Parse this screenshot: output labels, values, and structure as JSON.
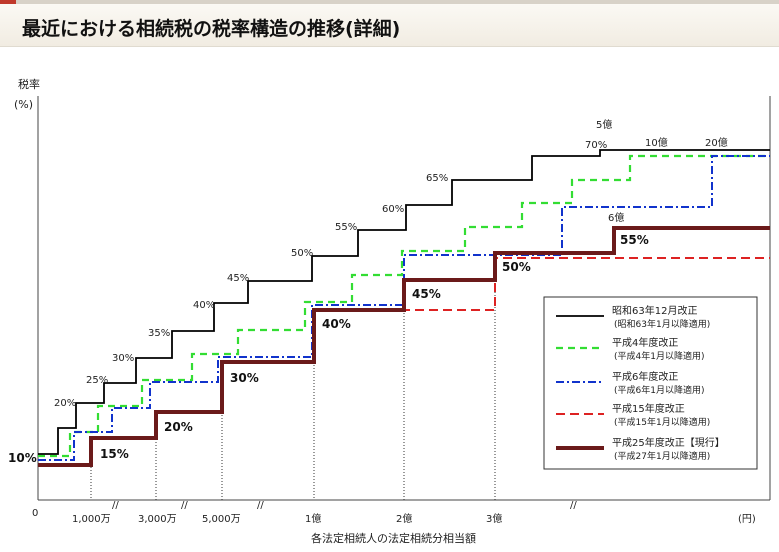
{
  "page": {
    "title": "最近における相続税の税率構造の推移(詳細)"
  },
  "chart_data": {
    "type": "line",
    "title": "最近における相続税の税率構造の推移(詳細)",
    "ylabel": "税率",
    "yunit": "(%)",
    "xlabel": "各法定相続人の法定相続分相当額",
    "xunit": "(円)",
    "x_origin_label": "0",
    "x_tick_labels": [
      "1,000万",
      "3,000万",
      "5,000万",
      "1億",
      "2億",
      "3億"
    ],
    "legend_position": "bottom-right",
    "series": [
      {
        "name": "昭和63年12月改正",
        "subname": "(昭和63年1月以降適用)",
        "color": "#000000",
        "dash": "solid",
        "steps": [
          {
            "x": 0,
            "rate": 10
          },
          {
            "x": 0.5,
            "rate": 15
          },
          {
            "x": 1,
            "rate": 20
          },
          {
            "x": 2,
            "rate": 25
          },
          {
            "x": 3,
            "rate": 30
          },
          {
            "x": 4,
            "rate": 35
          },
          {
            "x": 5,
            "rate": 40
          },
          {
            "x": 6,
            "rate": 45
          },
          {
            "x": 8,
            "rate": 50
          },
          {
            "x": 9,
            "rate": 55
          },
          {
            "x": 10,
            "rate": 60
          },
          {
            "x": 11,
            "rate": 65
          },
          {
            "x": 13,
            "rate": 70
          }
        ],
        "labels": [
          "20%",
          "25%",
          "30%",
          "35%",
          "40%",
          "45%",
          "50%",
          "55%",
          "60%",
          "65%",
          "70%"
        ],
        "top_label": "5億"
      },
      {
        "name": "平成4年度改正",
        "subname": "(平成4年1月以降適用)",
        "color": "#33dd33",
        "dash": "dashed",
        "steps": [
          {
            "x": 0,
            "rate": 10
          },
          {
            "x": 0.7,
            "rate": 15
          },
          {
            "x": 1.3,
            "rate": 20
          },
          {
            "x": 2.3,
            "rate": 25
          },
          {
            "x": 3.3,
            "rate": 30
          },
          {
            "x": 4.3,
            "rate": 35
          },
          {
            "x": 6,
            "rate": 40
          },
          {
            "x": 7.3,
            "rate": 45
          },
          {
            "x": 8.3,
            "rate": 50
          },
          {
            "x": 9.3,
            "rate": 55
          },
          {
            "x": 10.3,
            "rate": 60
          },
          {
            "x": 11.3,
            "rate": 65
          },
          {
            "x": 12.3,
            "rate": 70
          }
        ],
        "top_label": "10億"
      },
      {
        "name": "平成6年度改正",
        "subname": "(平成6年1月以降適用)",
        "color": "#1133cc",
        "dash": "dashdot",
        "steps": [
          {
            "x": 0,
            "rate": 10
          },
          {
            "x": 0.8,
            "rate": 15
          },
          {
            "x": 1.6,
            "rate": 20
          },
          {
            "x": 2.6,
            "rate": 25
          },
          {
            "x": 3.9,
            "rate": 30
          },
          {
            "x": 6,
            "rate": 40
          },
          {
            "x": 8,
            "rate": 50
          },
          {
            "x": 10.3,
            "rate": 60
          },
          {
            "x": 13,
            "rate": 70
          }
        ],
        "top_label": "20億"
      },
      {
        "name": "平成15年度改正",
        "subname": "(平成15年1月以降適用)",
        "color": "#dd2222",
        "dash": "dashed",
        "steps": [
          {
            "x": 0,
            "rate": 10
          },
          {
            "x": 1,
            "rate": 15
          },
          {
            "x": 2.5,
            "rate": 20
          },
          {
            "x": 3.9,
            "rate": 30
          },
          {
            "x": 6,
            "rate": 40
          },
          {
            "x": 8,
            "rate": 45
          },
          {
            "x": 10,
            "rate": 50
          }
        ]
      },
      {
        "name": "平成25年度改正【現行】",
        "subname": "(平成27年1月以降適用)",
        "color": "#6b1a1a",
        "dash": "solid",
        "steps": [
          {
            "x": 0,
            "rate": 10
          },
          {
            "x": 1,
            "rate": 15
          },
          {
            "x": 2.5,
            "rate": 20
          },
          {
            "x": 3.9,
            "rate": 30
          },
          {
            "x": 6,
            "rate": 40
          },
          {
            "x": 8,
            "rate": 45
          },
          {
            "x": 10,
            "rate": 50
          },
          {
            "x": 12.7,
            "rate": 55
          }
        ],
        "labels": [
          "10%",
          "15%",
          "20%",
          "30%",
          "40%",
          "45%",
          "50%",
          "55%"
        ],
        "top_label": "6億"
      }
    ]
  }
}
